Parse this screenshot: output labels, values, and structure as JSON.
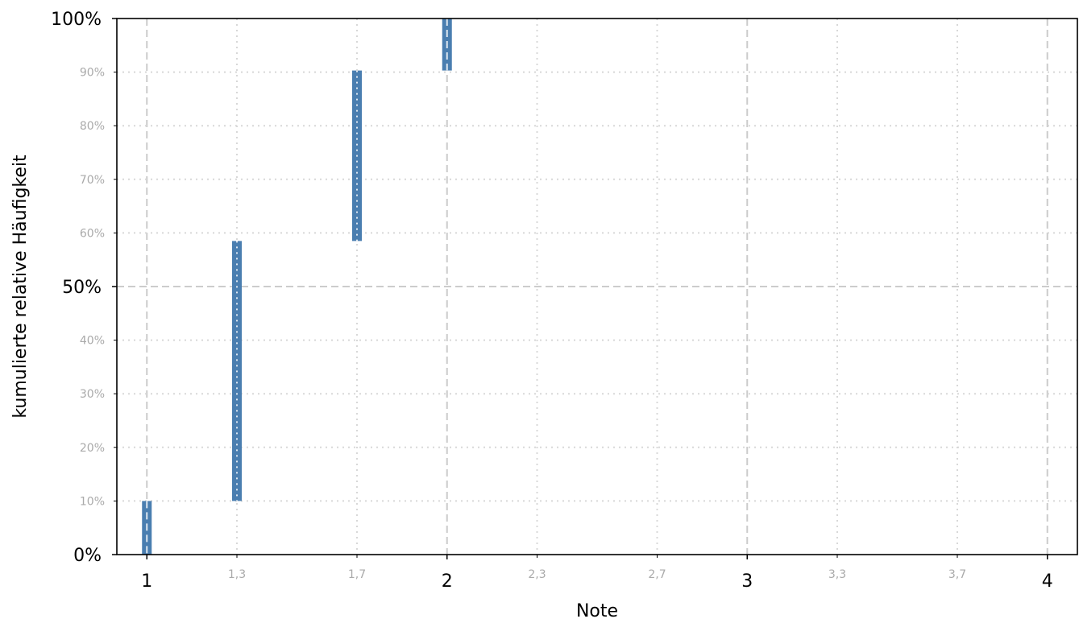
{
  "chart_data": {
    "type": "bar",
    "title": "",
    "xlabel": "Note",
    "ylabel": "kumulierte relative Häufigkeit",
    "xlim": [
      0.9,
      4.1
    ],
    "ylim": [
      0,
      100
    ],
    "x_major_ticks": [
      {
        "value": 1,
        "label": "1"
      },
      {
        "value": 2,
        "label": "2"
      },
      {
        "value": 3,
        "label": "3"
      },
      {
        "value": 4,
        "label": "4"
      }
    ],
    "x_minor_ticks": [
      {
        "value": 1.3,
        "label": "1,3"
      },
      {
        "value": 1.7,
        "label": "1,7"
      },
      {
        "value": 2.3,
        "label": "2,3"
      },
      {
        "value": 2.7,
        "label": "2,7"
      },
      {
        "value": 3.3,
        "label": "3,3"
      },
      {
        "value": 3.7,
        "label": "3,7"
      }
    ],
    "y_major_ticks": [
      {
        "value": 0,
        "label": "0%"
      },
      {
        "value": 50,
        "label": "50%"
      },
      {
        "value": 100,
        "label": "100%"
      }
    ],
    "y_minor_ticks": [
      {
        "value": 10,
        "label": "10%"
      },
      {
        "value": 20,
        "label": "20%"
      },
      {
        "value": 30,
        "label": "30%"
      },
      {
        "value": 40,
        "label": "40%"
      },
      {
        "value": 60,
        "label": "60%"
      },
      {
        "value": 70,
        "label": "70%"
      },
      {
        "value": 80,
        "label": "80%"
      },
      {
        "value": 90,
        "label": "90%"
      }
    ],
    "bars": [
      {
        "x": 1.0,
        "from": 0,
        "to": 10
      },
      {
        "x": 1.3,
        "from": 10,
        "to": 58.5
      },
      {
        "x": 1.7,
        "from": 58.5,
        "to": 90.3
      },
      {
        "x": 2.0,
        "from": 90.3,
        "to": 100
      }
    ],
    "grid": true,
    "legend": "none",
    "colors": {
      "bar": "#4a7eb0",
      "major_grid": "#cccccc",
      "minor_grid": "#d8d8d8",
      "minor_tick_text": "#aaaaaa",
      "axis": "#000000"
    }
  }
}
